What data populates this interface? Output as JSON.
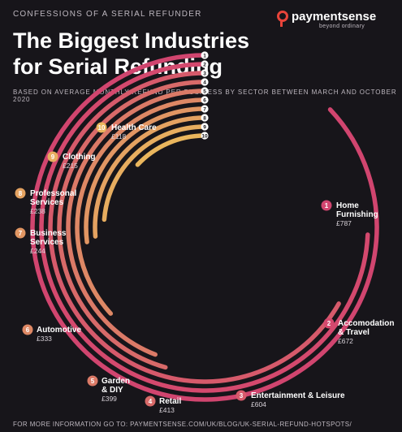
{
  "header": {
    "kicker": "CONFESSIONS OF A SERIAL REFUNDER",
    "title": "The Biggest Industries for Serial Refunding",
    "subtitle": "BASED ON AVERAGE MONTHLY REFUND PER BUSINESS BY SECTOR BETWEEN MARCH AND OCTOBER 2020",
    "brand_name": "paymentsense",
    "brand_tagline": "beyond ordinary"
  },
  "footer": {
    "text": "FOR MORE INFORMATION GO TO: PAYMENTSENSE.COM/UK/BLOG/UK-SERIAL-REFUND-HOTSPOTS/"
  },
  "colors": {
    "background": "#17151a",
    "accent": "#e8443a",
    "ring_colors": [
      "#d1456f",
      "#d4496e",
      "#d65a6b",
      "#d86a69",
      "#db7a67",
      "#de8865",
      "#e19663",
      "#e4a261",
      "#e7ad5f",
      "#eab65d"
    ]
  },
  "chart_data": {
    "type": "radial-bar",
    "unit": "£",
    "categories": [
      "Home Furnishing",
      "Accomodation & Travel",
      "Entertainment & Leisure",
      "Retail",
      "Garden & DIY",
      "Automotive",
      "Business Services",
      "Professonal Services",
      "Clothing",
      "Health Care"
    ],
    "values": [
      787,
      672,
      604,
      413,
      399,
      333,
      244,
      238,
      215,
      118
    ],
    "ranks": [
      1,
      2,
      3,
      4,
      5,
      6,
      7,
      8,
      9,
      10
    ],
    "value_labels": [
      "£787",
      "£672",
      "£604",
      "£413",
      "£399",
      "£333",
      "£244",
      "£238",
      "£215",
      "£118"
    ],
    "label_lines": [
      [
        "Home",
        "Furnishing"
      ],
      [
        "Accomodation",
        "& Travel"
      ],
      [
        "Entertainment & Leisure"
      ],
      [
        "Retail"
      ],
      [
        "Garden",
        "& DIY"
      ],
      [
        "Automotive"
      ],
      [
        "Business",
        "Services"
      ],
      [
        "Professonal",
        "Services"
      ],
      [
        "Clothing"
      ],
      [
        "Health Care"
      ]
    ],
    "scale_max": 787
  }
}
